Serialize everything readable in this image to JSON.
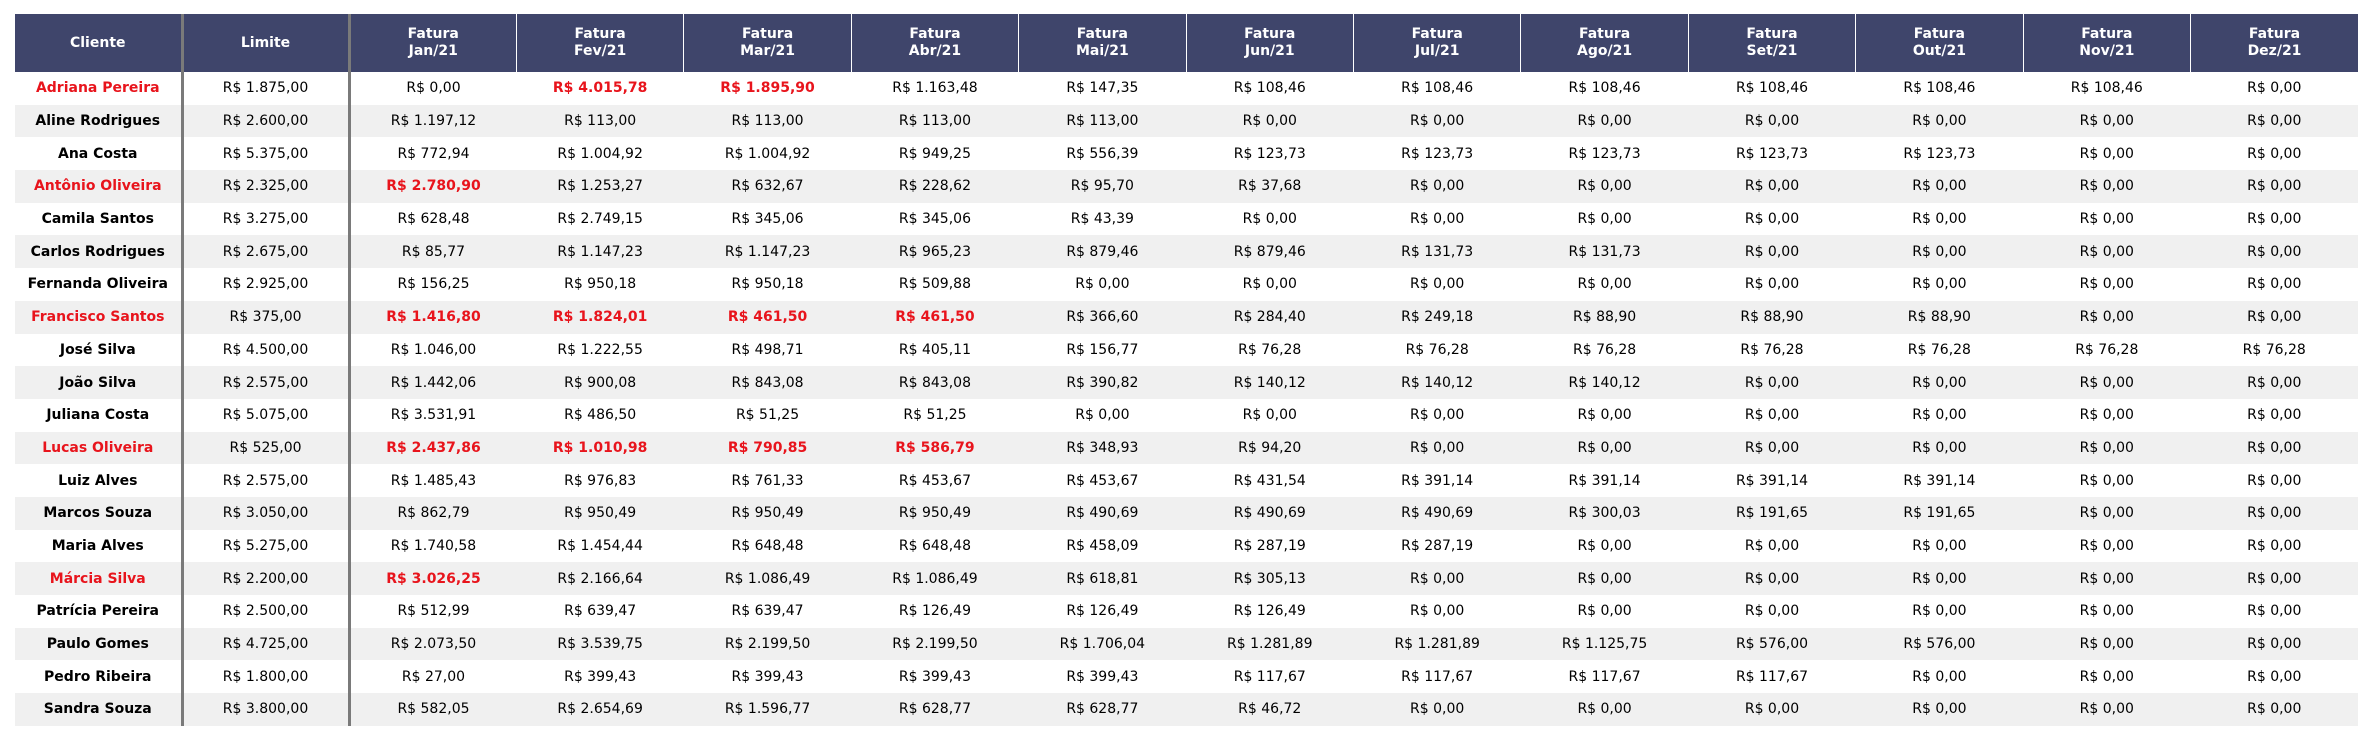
{
  "colors": {
    "header_bg": "#3f456b",
    "header_text": "#ffffff",
    "stripe": "#f0f0f0",
    "alert": "#e8141c",
    "separator": "#7a7a7a"
  },
  "table": {
    "columns": [
      "Cliente",
      "Limite",
      "Fatura\nJan/21",
      "Fatura\nFev/21",
      "Fatura\nMar/21",
      "Fatura\nAbr/21",
      "Fatura\nMai/21",
      "Fatura\nJun/21",
      "Fatura\nJul/21",
      "Fatura\nAgo/21",
      "Fatura\nSet/21",
      "Fatura\nOut/21",
      "Fatura\nNov/21",
      "Fatura\nDez/21"
    ],
    "rows": [
      {
        "name": "Adriana Pereira",
        "alert": true,
        "limit": "R$ 1.875,00",
        "invoices": [
          "R$ 0,00",
          "R$ 4.015,78",
          "R$ 1.895,90",
          "R$ 1.163,48",
          "R$ 147,35",
          "R$ 108,46",
          "R$ 108,46",
          "R$ 108,46",
          "R$ 108,46",
          "R$ 108,46",
          "R$ 108,46",
          "R$ 0,00"
        ],
        "over": [
          false,
          true,
          true,
          false,
          false,
          false,
          false,
          false,
          false,
          false,
          false,
          false
        ]
      },
      {
        "name": "Aline Rodrigues",
        "alert": false,
        "limit": "R$ 2.600,00",
        "invoices": [
          "R$ 1.197,12",
          "R$ 113,00",
          "R$ 113,00",
          "R$ 113,00",
          "R$ 113,00",
          "R$ 0,00",
          "R$ 0,00",
          "R$ 0,00",
          "R$ 0,00",
          "R$ 0,00",
          "R$ 0,00",
          "R$ 0,00"
        ],
        "over": [
          false,
          false,
          false,
          false,
          false,
          false,
          false,
          false,
          false,
          false,
          false,
          false
        ]
      },
      {
        "name": "Ana Costa",
        "alert": false,
        "limit": "R$ 5.375,00",
        "invoices": [
          "R$ 772,94",
          "R$ 1.004,92",
          "R$ 1.004,92",
          "R$ 949,25",
          "R$ 556,39",
          "R$ 123,73",
          "R$ 123,73",
          "R$ 123,73",
          "R$ 123,73",
          "R$ 123,73",
          "R$ 0,00",
          "R$ 0,00"
        ],
        "over": [
          false,
          false,
          false,
          false,
          false,
          false,
          false,
          false,
          false,
          false,
          false,
          false
        ]
      },
      {
        "name": "Antônio Oliveira",
        "alert": true,
        "limit": "R$ 2.325,00",
        "invoices": [
          "R$ 2.780,90",
          "R$ 1.253,27",
          "R$ 632,67",
          "R$ 228,62",
          "R$ 95,70",
          "R$ 37,68",
          "R$ 0,00",
          "R$ 0,00",
          "R$ 0,00",
          "R$ 0,00",
          "R$ 0,00",
          "R$ 0,00"
        ],
        "over": [
          true,
          false,
          false,
          false,
          false,
          false,
          false,
          false,
          false,
          false,
          false,
          false
        ]
      },
      {
        "name": "Camila Santos",
        "alert": false,
        "limit": "R$ 3.275,00",
        "invoices": [
          "R$ 628,48",
          "R$ 2.749,15",
          "R$ 345,06",
          "R$ 345,06",
          "R$ 43,39",
          "R$ 0,00",
          "R$ 0,00",
          "R$ 0,00",
          "R$ 0,00",
          "R$ 0,00",
          "R$ 0,00",
          "R$ 0,00"
        ],
        "over": [
          false,
          false,
          false,
          false,
          false,
          false,
          false,
          false,
          false,
          false,
          false,
          false
        ]
      },
      {
        "name": "Carlos Rodrigues",
        "alert": false,
        "limit": "R$ 2.675,00",
        "invoices": [
          "R$ 85,77",
          "R$ 1.147,23",
          "R$ 1.147,23",
          "R$ 965,23",
          "R$ 879,46",
          "R$ 879,46",
          "R$ 131,73",
          "R$ 131,73",
          "R$ 0,00",
          "R$ 0,00",
          "R$ 0,00",
          "R$ 0,00"
        ],
        "over": [
          false,
          false,
          false,
          false,
          false,
          false,
          false,
          false,
          false,
          false,
          false,
          false
        ]
      },
      {
        "name": "Fernanda Oliveira",
        "alert": false,
        "limit": "R$ 2.925,00",
        "invoices": [
          "R$ 156,25",
          "R$ 950,18",
          "R$ 950,18",
          "R$ 509,88",
          "R$ 0,00",
          "R$ 0,00",
          "R$ 0,00",
          "R$ 0,00",
          "R$ 0,00",
          "R$ 0,00",
          "R$ 0,00",
          "R$ 0,00"
        ],
        "over": [
          false,
          false,
          false,
          false,
          false,
          false,
          false,
          false,
          false,
          false,
          false,
          false
        ]
      },
      {
        "name": "Francisco Santos",
        "alert": true,
        "limit": "R$ 375,00",
        "invoices": [
          "R$ 1.416,80",
          "R$ 1.824,01",
          "R$ 461,50",
          "R$ 461,50",
          "R$ 366,60",
          "R$ 284,40",
          "R$ 249,18",
          "R$ 88,90",
          "R$ 88,90",
          "R$ 88,90",
          "R$ 0,00",
          "R$ 0,00"
        ],
        "over": [
          true,
          true,
          true,
          true,
          false,
          false,
          false,
          false,
          false,
          false,
          false,
          false
        ]
      },
      {
        "name": "José Silva",
        "alert": false,
        "limit": "R$ 4.500,00",
        "invoices": [
          "R$ 1.046,00",
          "R$ 1.222,55",
          "R$ 498,71",
          "R$ 405,11",
          "R$ 156,77",
          "R$ 76,28",
          "R$ 76,28",
          "R$ 76,28",
          "R$ 76,28",
          "R$ 76,28",
          "R$ 76,28",
          "R$ 76,28"
        ],
        "over": [
          false,
          false,
          false,
          false,
          false,
          false,
          false,
          false,
          false,
          false,
          false,
          false
        ]
      },
      {
        "name": "João Silva",
        "alert": false,
        "limit": "R$ 2.575,00",
        "invoices": [
          "R$ 1.442,06",
          "R$ 900,08",
          "R$ 843,08",
          "R$ 843,08",
          "R$ 390,82",
          "R$ 140,12",
          "R$ 140,12",
          "R$ 140,12",
          "R$ 0,00",
          "R$ 0,00",
          "R$ 0,00",
          "R$ 0,00"
        ],
        "over": [
          false,
          false,
          false,
          false,
          false,
          false,
          false,
          false,
          false,
          false,
          false,
          false
        ]
      },
      {
        "name": "Juliana Costa",
        "alert": false,
        "limit": "R$ 5.075,00",
        "invoices": [
          "R$ 3.531,91",
          "R$ 486,50",
          "R$ 51,25",
          "R$ 51,25",
          "R$ 0,00",
          "R$ 0,00",
          "R$ 0,00",
          "R$ 0,00",
          "R$ 0,00",
          "R$ 0,00",
          "R$ 0,00",
          "R$ 0,00"
        ],
        "over": [
          false,
          false,
          false,
          false,
          false,
          false,
          false,
          false,
          false,
          false,
          false,
          false
        ]
      },
      {
        "name": "Lucas Oliveira",
        "alert": true,
        "limit": "R$ 525,00",
        "invoices": [
          "R$ 2.437,86",
          "R$ 1.010,98",
          "R$ 790,85",
          "R$ 586,79",
          "R$ 348,93",
          "R$ 94,20",
          "R$ 0,00",
          "R$ 0,00",
          "R$ 0,00",
          "R$ 0,00",
          "R$ 0,00",
          "R$ 0,00"
        ],
        "over": [
          true,
          true,
          true,
          true,
          false,
          false,
          false,
          false,
          false,
          false,
          false,
          false
        ]
      },
      {
        "name": "Luiz Alves",
        "alert": false,
        "limit": "R$ 2.575,00",
        "invoices": [
          "R$ 1.485,43",
          "R$ 976,83",
          "R$ 761,33",
          "R$ 453,67",
          "R$ 453,67",
          "R$ 431,54",
          "R$ 391,14",
          "R$ 391,14",
          "R$ 391,14",
          "R$ 391,14",
          "R$ 0,00",
          "R$ 0,00"
        ],
        "over": [
          false,
          false,
          false,
          false,
          false,
          false,
          false,
          false,
          false,
          false,
          false,
          false
        ]
      },
      {
        "name": "Marcos Souza",
        "alert": false,
        "limit": "R$ 3.050,00",
        "invoices": [
          "R$ 862,79",
          "R$ 950,49",
          "R$ 950,49",
          "R$ 950,49",
          "R$ 490,69",
          "R$ 490,69",
          "R$ 490,69",
          "R$ 300,03",
          "R$ 191,65",
          "R$ 191,65",
          "R$ 0,00",
          "R$ 0,00"
        ],
        "over": [
          false,
          false,
          false,
          false,
          false,
          false,
          false,
          false,
          false,
          false,
          false,
          false
        ]
      },
      {
        "name": "Maria Alves",
        "alert": false,
        "limit": "R$ 5.275,00",
        "invoices": [
          "R$ 1.740,58",
          "R$ 1.454,44",
          "R$ 648,48",
          "R$ 648,48",
          "R$ 458,09",
          "R$ 287,19",
          "R$ 287,19",
          "R$ 0,00",
          "R$ 0,00",
          "R$ 0,00",
          "R$ 0,00",
          "R$ 0,00"
        ],
        "over": [
          false,
          false,
          false,
          false,
          false,
          false,
          false,
          false,
          false,
          false,
          false,
          false
        ]
      },
      {
        "name": "Márcia Silva",
        "alert": true,
        "limit": "R$ 2.200,00",
        "invoices": [
          "R$ 3.026,25",
          "R$ 2.166,64",
          "R$ 1.086,49",
          "R$ 1.086,49",
          "R$ 618,81",
          "R$ 305,13",
          "R$ 0,00",
          "R$ 0,00",
          "R$ 0,00",
          "R$ 0,00",
          "R$ 0,00",
          "R$ 0,00"
        ],
        "over": [
          true,
          false,
          false,
          false,
          false,
          false,
          false,
          false,
          false,
          false,
          false,
          false
        ]
      },
      {
        "name": "Patrícia Pereira",
        "alert": false,
        "limit": "R$ 2.500,00",
        "invoices": [
          "R$ 512,99",
          "R$ 639,47",
          "R$ 639,47",
          "R$ 126,49",
          "R$ 126,49",
          "R$ 126,49",
          "R$ 0,00",
          "R$ 0,00",
          "R$ 0,00",
          "R$ 0,00",
          "R$ 0,00",
          "R$ 0,00"
        ],
        "over": [
          false,
          false,
          false,
          false,
          false,
          false,
          false,
          false,
          false,
          false,
          false,
          false
        ]
      },
      {
        "name": "Paulo Gomes",
        "alert": false,
        "limit": "R$ 4.725,00",
        "invoices": [
          "R$ 2.073,50",
          "R$ 3.539,75",
          "R$ 2.199,50",
          "R$ 2.199,50",
          "R$ 1.706,04",
          "R$ 1.281,89",
          "R$ 1.281,89",
          "R$ 1.125,75",
          "R$ 576,00",
          "R$ 576,00",
          "R$ 0,00",
          "R$ 0,00"
        ],
        "over": [
          false,
          false,
          false,
          false,
          false,
          false,
          false,
          false,
          false,
          false,
          false,
          false
        ]
      },
      {
        "name": "Pedro Ribeira",
        "alert": false,
        "limit": "R$ 1.800,00",
        "invoices": [
          "R$ 27,00",
          "R$ 399,43",
          "R$ 399,43",
          "R$ 399,43",
          "R$ 399,43",
          "R$ 117,67",
          "R$ 117,67",
          "R$ 117,67",
          "R$ 117,67",
          "R$ 0,00",
          "R$ 0,00",
          "R$ 0,00"
        ],
        "over": [
          false,
          false,
          false,
          false,
          false,
          false,
          false,
          false,
          false,
          false,
          false,
          false
        ]
      },
      {
        "name": "Sandra Souza",
        "alert": false,
        "limit": "R$ 3.800,00",
        "invoices": [
          "R$ 582,05",
          "R$ 2.654,69",
          "R$ 1.596,77",
          "R$ 628,77",
          "R$ 628,77",
          "R$ 46,72",
          "R$ 0,00",
          "R$ 0,00",
          "R$ 0,00",
          "R$ 0,00",
          "R$ 0,00",
          "R$ 0,00"
        ],
        "over": [
          false,
          false,
          false,
          false,
          false,
          false,
          false,
          false,
          false,
          false,
          false,
          false
        ]
      }
    ]
  }
}
